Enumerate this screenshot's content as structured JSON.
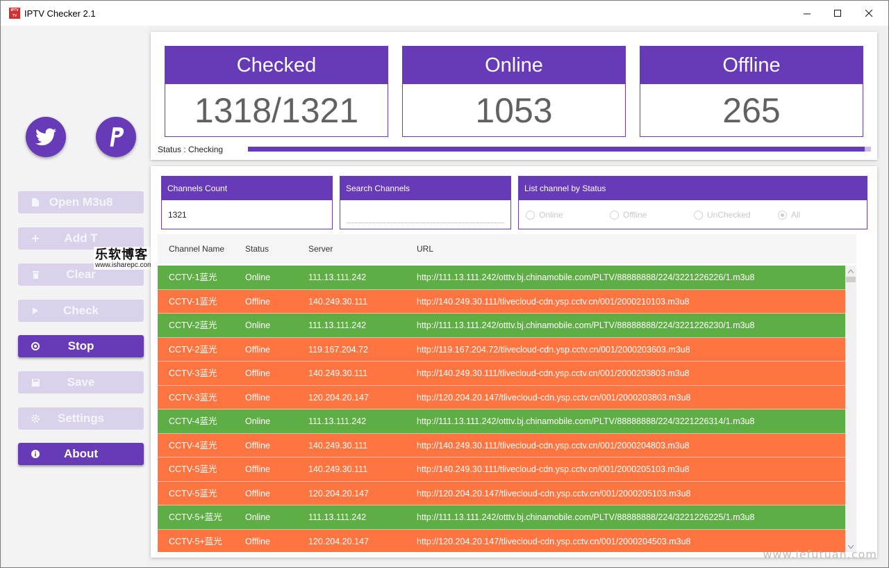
{
  "window": {
    "title": "IPTV Checker 2.1",
    "app_icon_text": "IPTV Checker"
  },
  "sidebar": {
    "social": [
      {
        "name": "twitter-icon"
      },
      {
        "name": "paypal-icon"
      }
    ],
    "buttons": [
      {
        "label": "Open M3u8",
        "icon": "file-icon",
        "state": "disabled"
      },
      {
        "label": "Add T",
        "icon": "plus-icon",
        "state": "disabled"
      },
      {
        "label": "Clear",
        "icon": "trash-icon",
        "state": "disabled"
      },
      {
        "label": "Check",
        "icon": "play-icon",
        "state": "disabled"
      },
      {
        "label": "Stop",
        "icon": "stop-icon",
        "state": "active"
      },
      {
        "label": "Save",
        "icon": "save-icon",
        "state": "disabled"
      },
      {
        "label": "Settings",
        "icon": "gear-icon",
        "state": "disabled"
      },
      {
        "label": "About",
        "icon": "info-icon",
        "state": "active"
      }
    ],
    "watermark": {
      "line1": "乐软博客",
      "line2": "www.isharepc.com"
    }
  },
  "stats": {
    "checked": {
      "label": "Checked",
      "value": "1318/1321"
    },
    "online": {
      "label": "Online",
      "value": "1053"
    },
    "offline": {
      "label": "Offline",
      "value": "265"
    }
  },
  "status": {
    "text": "Status : Checking",
    "progress_pct": 99
  },
  "filters": {
    "count": {
      "label": "Channels Count",
      "value": "1321"
    },
    "search": {
      "label": "Search Channels",
      "value": ""
    },
    "by_status": {
      "label": "List channel by Status",
      "options": [
        "Online",
        "Offline",
        "UnChecked",
        "All"
      ],
      "selected": "All"
    }
  },
  "table": {
    "headers": [
      "Channel Name",
      "Status",
      "Server",
      "URL"
    ],
    "rows": [
      {
        "name": "CCTV-1蓝光",
        "status": "Online",
        "server": "111.13.111.242",
        "url": "http://111.13.111.242/otttv.bj.chinamobile.com/PLTV/88888888/224/3221226226/1.m3u8"
      },
      {
        "name": "CCTV-1蓝光",
        "status": "Offline",
        "server": "140.249.30.111",
        "url": "http://140.249.30.111/tlivecloud-cdn.ysp.cctv.cn/001/2000210103.m3u8"
      },
      {
        "name": "CCTV-2蓝光",
        "status": "Online",
        "server": "111.13.111.242",
        "url": "http://111.13.111.242/otttv.bj.chinamobile.com/PLTV/88888888/224/3221226230/1.m3u8"
      },
      {
        "name": "CCTV-2蓝光",
        "status": "Offline",
        "server": "119.167.204.72",
        "url": "http://119.167.204.72/tlivecloud-cdn.ysp.cctv.cn/001/2000203603.m3u8"
      },
      {
        "name": "CCTV-3蓝光",
        "status": "Offline",
        "server": "140.249.30.111",
        "url": "http://140.249.30.111/tlivecloud-cdn.ysp.cctv.cn/001/2000203803.m3u8"
      },
      {
        "name": "CCTV-3蓝光",
        "status": "Offline",
        "server": "120.204.20.147",
        "url": "http://120.204.20.147/tlivecloud-cdn.ysp.cctv.cn/001/2000203803.m3u8"
      },
      {
        "name": "CCTV-4蓝光",
        "status": "Online",
        "server": "111.13.111.242",
        "url": "http://111.13.111.242/otttv.bj.chinamobile.com/PLTV/88888888/224/3221226314/1.m3u8"
      },
      {
        "name": "CCTV-4蓝光",
        "status": "Offline",
        "server": "140.249.30.111",
        "url": "http://140.249.30.111/tlivecloud-cdn.ysp.cctv.cn/001/2000204803.m3u8"
      },
      {
        "name": "CCTV-5蓝光",
        "status": "Offline",
        "server": "140.249.30.111",
        "url": "http://140.249.30.111/tlivecloud-cdn.ysp.cctv.cn/001/2000205103.m3u8"
      },
      {
        "name": "CCTV-5蓝光",
        "status": "Offline",
        "server": "120.204.20.147",
        "url": "http://120.204.20.147/tlivecloud-cdn.ysp.cctv.cn/001/2000205103.m3u8"
      },
      {
        "name": "CCTV-5+蓝光",
        "status": "Online",
        "server": "111.13.111.242",
        "url": "http://111.13.111.242/otttv.bj.chinamobile.com/PLTV/88888888/224/3221226225/1.m3u8"
      },
      {
        "name": "CCTV-5+蓝光",
        "status": "Offline",
        "server": "120.204.20.147",
        "url": "http://120.204.20.147/tlivecloud-cdn.ysp.cctv.cn/001/2000204503.m3u8"
      }
    ]
  },
  "corner_watermark": "www.lefutuan.com",
  "colors": {
    "accent": "#673ab7",
    "online": "#5fad45",
    "offline": "#ff7541"
  }
}
